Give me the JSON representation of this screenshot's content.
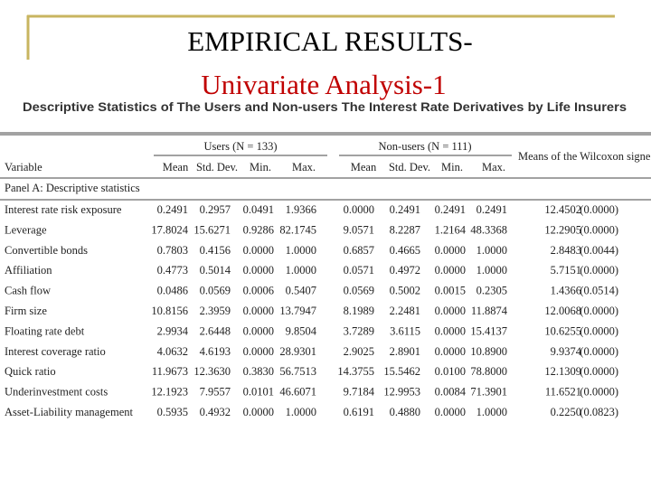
{
  "header": {
    "title_line1": "EMPIRICAL RESULTS-",
    "title_line2": "Univariate Analysis-1"
  },
  "table": {
    "caption": "Descriptive Statistics of The Users and Non-users The Interest Rate Derivatives by Life Insurers",
    "groups": [
      "Users (N = 133)",
      "Non-users (N = 111)",
      "Means of the Wilcoxon signed-rank tes"
    ],
    "columns": [
      "Variable",
      "Mean",
      "Std. Dev.",
      "Min.",
      "Max.",
      "Mean",
      "Std. Dev.",
      "Min.",
      "Max."
    ],
    "panel": "Panel A: Descriptive statistics",
    "rows": [
      [
        "Interest rate risk exposure",
        "0.2491",
        "0.2957",
        "0.0491",
        "1.9366",
        "0.0000",
        "0.2491",
        "0.2491",
        "0.2491",
        "12.4502",
        "(0.0000)"
      ],
      [
        "Leverage",
        "17.8024",
        "15.6271",
        "0.9286",
        "82.1745",
        "9.0571",
        "8.2287",
        "1.2164",
        "48.3368",
        "12.2905",
        "(0.0000)"
      ],
      [
        "Convertible bonds",
        "0.7803",
        "0.4156",
        "0.0000",
        "1.0000",
        "0.6857",
        "0.4665",
        "0.0000",
        "1.0000",
        "2.8483",
        "(0.0044)"
      ],
      [
        "Affiliation",
        "0.4773",
        "0.5014",
        "0.0000",
        "1.0000",
        "0.0571",
        "0.4972",
        "0.0000",
        "1.0000",
        "5.7151",
        "(0.0000)"
      ],
      [
        "Cash flow",
        "0.0486",
        "0.0569",
        "0.0006",
        "0.5407",
        "0.0569",
        "0.5002",
        "0.0015",
        "0.2305",
        "1.4366",
        "(0.0514)"
      ],
      [
        "Firm size",
        "10.8156",
        "2.3959",
        "0.0000",
        "13.7947",
        "8.1989",
        "2.2481",
        "0.0000",
        "11.8874",
        "12.0068",
        "(0.0000)"
      ],
      [
        "Floating rate debt",
        "2.9934",
        "2.6448",
        "0.0000",
        "9.8504",
        "3.7289",
        "3.6115",
        "0.0000",
        "15.4137",
        "10.6255",
        "(0.0000)"
      ],
      [
        "Interest coverage ratio",
        "4.0632",
        "4.6193",
        "0.0000",
        "28.9301",
        "2.9025",
        "2.8901",
        "0.0000",
        "10.8900",
        "9.9374",
        "(0.0000)"
      ],
      [
        "Quick ratio",
        "11.9673",
        "12.3630",
        "0.3830",
        "56.7513",
        "14.3755",
        "15.5462",
        "0.0100",
        "78.8000",
        "12.1309",
        "(0.0000)"
      ],
      [
        "Underinvestment costs",
        "12.1923",
        "7.9557",
        "0.0101",
        "46.6071",
        "9.7184",
        "12.9953",
        "0.0084",
        "71.3901",
        "11.6521",
        "(0.0000)"
      ],
      [
        "Asset-Liability management",
        "0.5935",
        "0.4932",
        "0.0000",
        "1.0000",
        "0.6191",
        "0.4880",
        "0.0000",
        "1.0000",
        "0.2250",
        "(0.0823)"
      ]
    ]
  }
}
